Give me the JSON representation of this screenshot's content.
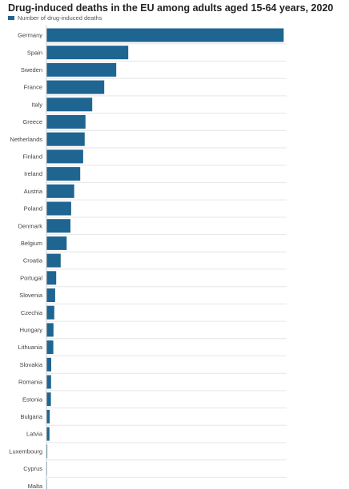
{
  "chart_data": {
    "type": "bar",
    "orientation": "horizontal",
    "title": "Drug-induced deaths in the EU among adults aged 15-64 years, 2020",
    "legend": {
      "placement": "top-left",
      "entries": [
        "Number of drug-induced deaths"
      ]
    },
    "series": [
      {
        "name": "Number of drug-induced deaths",
        "color": "#1f6591",
        "values": [
          1581,
          545,
          465,
          385,
          305,
          260,
          255,
          245,
          225,
          185,
          165,
          160,
          135,
          95,
          65,
          58,
          52,
          47,
          46,
          32,
          31,
          30,
          22,
          20,
          6,
          4,
          2
        ]
      }
    ],
    "categories": [
      "Germany",
      "Spain",
      "Sweden",
      "France",
      "Italy",
      "Greece",
      "Netherlands",
      "Finland",
      "Ireland",
      "Austria",
      "Poland",
      "Denmark",
      "Belgium",
      "Croatia",
      "Portugal",
      "Slovenia",
      "Czechia",
      "Hungary",
      "Lithuania",
      "Slovakia",
      "Romania",
      "Estonia",
      "Bulgaria",
      "Latvia",
      "Luxembourg",
      "Cyprus",
      "Malta"
    ],
    "xlim": [
      0,
      1600
    ],
    "grid": true
  }
}
